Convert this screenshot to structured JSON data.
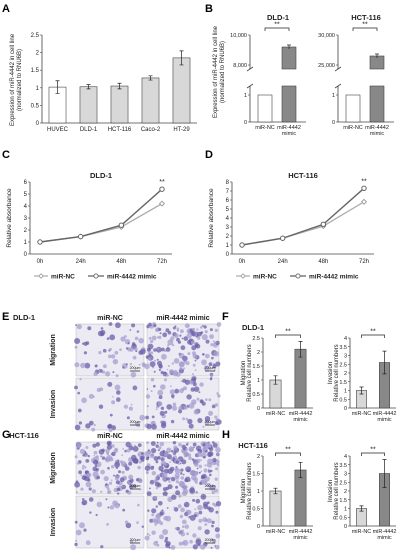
{
  "panels": {
    "A": "A",
    "B": "B",
    "C": "C",
    "D": "D",
    "E": "E",
    "F": "F",
    "G": "G",
    "H": "H"
  },
  "common": {
    "sig": "**",
    "ylabel_expr": "Expression of miR-4442 in cell line",
    "ylabel_expr2": "(normalized to RNU6B)",
    "rel_abs": "Relative absorbance",
    "rel_cell": "Relative cell numbers",
    "migration": "Migration",
    "invasion": "Invasion",
    "scale": "200μm",
    "mir_nc": "miR-NC",
    "mimic_line1": "miR-4442",
    "mimic_line2": "mimic",
    "mimic_full": "miR-4442 mimic"
  },
  "chart_data": [
    {
      "id": "A",
      "type": "bar",
      "categories": [
        "HUVEC",
        "DLD-1",
        "HCT-116",
        "Caco-2",
        "HT-29"
      ],
      "values": [
        1.02,
        1.03,
        1.05,
        1.28,
        1.85
      ],
      "errors": [
        0.18,
        0.06,
        0.08,
        0.06,
        0.2
      ],
      "ylim": [
        0,
        2.5
      ],
      "yticks": [
        "0",
        "0.5",
        "1",
        "1.5",
        "2",
        "2.5"
      ]
    },
    {
      "id": "B1",
      "type": "bar",
      "title": "DLD-1",
      "categories": [
        "miR-NC",
        "miR-4442 mimic"
      ],
      "values": [
        1,
        9200
      ],
      "ytick_top": [
        "8,000",
        "10,000"
      ],
      "ytick_bot": [
        "0",
        "1"
      ]
    },
    {
      "id": "B2",
      "type": "bar",
      "title": "HCT-116",
      "categories": [
        "miR-NC",
        "miR-4442 mimic"
      ],
      "values": [
        1,
        26500
      ],
      "ytick_top": [
        "25,000",
        "30,000"
      ],
      "ytick_bot": [
        "0",
        "1"
      ]
    },
    {
      "id": "C",
      "type": "line",
      "title": "DLD-1",
      "x": [
        "0h",
        "24h",
        "48h",
        "72h"
      ],
      "series": [
        {
          "name": "miR-NC",
          "values": [
            1.0,
            1.45,
            2.25,
            4.2
          ]
        },
        {
          "name": "miR-4442 mimic",
          "values": [
            1.0,
            1.45,
            2.4,
            5.4
          ]
        }
      ],
      "ylim": [
        0,
        6
      ],
      "yticks": [
        "0",
        "1",
        "2",
        "3",
        "4",
        "5",
        "6"
      ]
    },
    {
      "id": "D",
      "type": "line",
      "title": "HCT-116",
      "x": [
        "0h",
        "24h",
        "48h",
        "72h"
      ],
      "series": [
        {
          "name": "miR-NC",
          "values": [
            1.0,
            1.75,
            3.1,
            5.8
          ]
        },
        {
          "name": "miR-4442 mimic",
          "values": [
            1.0,
            1.75,
            3.3,
            7.3
          ]
        }
      ],
      "ylim": [
        0,
        8
      ],
      "yticks": [
        "0",
        "1",
        "2",
        "3",
        "4",
        "5",
        "6",
        "7",
        "8"
      ]
    },
    {
      "id": "F1",
      "type": "bar",
      "title": "DLD-1",
      "categories": [
        "miR-NC",
        "miR-4442 mimic"
      ],
      "values": [
        1.0,
        2.1
      ],
      "errors": [
        0.15,
        0.28
      ],
      "ylim": [
        0,
        2.5
      ],
      "yticks": [
        "0",
        "0.5",
        "1",
        "1.5",
        "2",
        "2.5"
      ]
    },
    {
      "id": "F2",
      "type": "bar",
      "categories": [
        "miR-NC",
        "miR-4442 mimic"
      ],
      "values": [
        1.0,
        2.6
      ],
      "errors": [
        0.2,
        0.65
      ],
      "ylim": [
        0,
        4
      ],
      "yticks": [
        "0",
        "0.5",
        "1",
        "1.5",
        "2",
        "2.5",
        "3",
        "3.5",
        "4"
      ]
    },
    {
      "id": "H1",
      "type": "bar",
      "title": "HCT-116",
      "categories": [
        "miR-NC",
        "miR-4442 mimic"
      ],
      "values": [
        1.0,
        1.6
      ],
      "errors": [
        0.08,
        0.22
      ],
      "ylim": [
        0,
        2
      ],
      "yticks": [
        "0",
        "0.5",
        "1",
        "1.5",
        "2"
      ]
    },
    {
      "id": "H2",
      "type": "bar",
      "categories": [
        "miR-NC",
        "miR-4442 mimic"
      ],
      "values": [
        1.0,
        3.0
      ],
      "errors": [
        0.15,
        0.8
      ],
      "ylim": [
        0,
        4
      ],
      "yticks": [
        "0",
        "0.5",
        "1",
        "1.5",
        "2",
        "2.5",
        "3",
        "3.5",
        "4"
      ]
    }
  ],
  "micro": {
    "E_label": "DLD-1",
    "G_label": "HCT-116",
    "col1": "miR-NC",
    "col2": "miR-4442 mimic"
  },
  "colors": {
    "white_bar": "#ffffff",
    "light_bar": "#d8d8d8",
    "dark_bar": "#888888",
    "line_nc": "#b0b0b0",
    "line_mimic": "#666666",
    "stain": "#6a5fa8"
  }
}
